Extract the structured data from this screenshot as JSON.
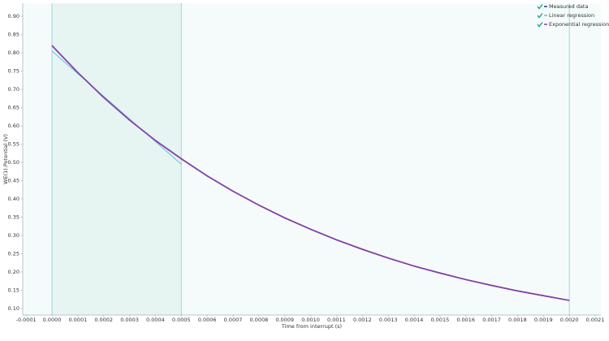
{
  "chart_data": {
    "type": "line",
    "x_label": "Time from interrupt (s)",
    "y_label": "WE(1).Potential (V)",
    "xlim": [
      -0.000113,
      0.002122
    ],
    "ylim": [
      0.082,
      0.936
    ],
    "xticks": [
      -0.0001,
      {
        "value": 0,
        "label": "0.0000"
      },
      0.0001,
      0.0002,
      0.0003,
      0.0004,
      0.0005,
      0.0006,
      0.0007,
      0.0008,
      0.0009,
      {
        "value": 0.001,
        "label": "0.0010"
      },
      0.0011,
      0.0012,
      0.0013,
      0.0014,
      0.0015,
      0.0016,
      0.0017,
      0.0018,
      0.0019,
      {
        "value": 0.002,
        "label": "0.0020"
      },
      0.0021
    ],
    "yticks": [
      {
        "value": 0.1,
        "label": "0.10"
      },
      0.15,
      {
        "value": 0.2,
        "label": "0.20"
      },
      0.25,
      {
        "value": 0.3,
        "label": "0.30"
      },
      0.35,
      {
        "value": 0.4,
        "label": "0.40"
      },
      0.45,
      {
        "value": 0.5,
        "label": "0.50"
      },
      0.55,
      {
        "value": 0.6,
        "label": "0.60"
      },
      0.65,
      {
        "value": 0.7,
        "label": "0.70"
      },
      0.75,
      {
        "value": 0.8,
        "label": "0.80"
      },
      0.85,
      {
        "value": 0.9,
        "label": "0.90"
      }
    ],
    "fit_range": [
      0,
      0.0005
    ],
    "marker_lines": [
      0,
      0.0005,
      0.002
    ],
    "legend": "top-right",
    "series": [
      {
        "name": "Measured data",
        "color": "#1f3f8f",
        "x": [
          0,
          0.0001,
          0.0002,
          0.0003,
          0.0004,
          0.0005,
          0.0006,
          0.0007,
          0.0008,
          0.0009,
          0.001,
          0.0011,
          0.0012,
          0.0013,
          0.0014,
          0.0015,
          0.0016,
          0.0017,
          0.0018,
          0.0019,
          0.002
        ],
        "values": [
          0.82,
          0.746,
          0.678,
          0.616,
          0.56,
          0.51,
          0.463,
          0.421,
          0.383,
          0.348,
          0.317,
          0.288,
          0.262,
          0.238,
          0.216,
          0.197,
          0.179,
          0.163,
          0.148,
          0.135,
          0.122
        ]
      },
      {
        "name": "Linear regression",
        "color": "#6fb8e0",
        "x": [
          0,
          0.0005
        ],
        "values": [
          0.805,
          0.495
        ]
      },
      {
        "name": "Exponential regression",
        "color": "#8a3fa8",
        "x": [
          0,
          0.0001,
          0.0002,
          0.0003,
          0.0004,
          0.0005,
          0.0006,
          0.0007,
          0.0008,
          0.0009,
          0.001,
          0.0011,
          0.0012,
          0.0013,
          0.0014,
          0.0015,
          0.0016,
          0.0017,
          0.0018,
          0.0019,
          0.002
        ],
        "values": [
          0.82,
          0.746,
          0.678,
          0.616,
          0.56,
          0.51,
          0.463,
          0.421,
          0.383,
          0.348,
          0.317,
          0.288,
          0.262,
          0.238,
          0.216,
          0.197,
          0.179,
          0.163,
          0.148,
          0.135,
          0.122
        ]
      }
    ]
  }
}
